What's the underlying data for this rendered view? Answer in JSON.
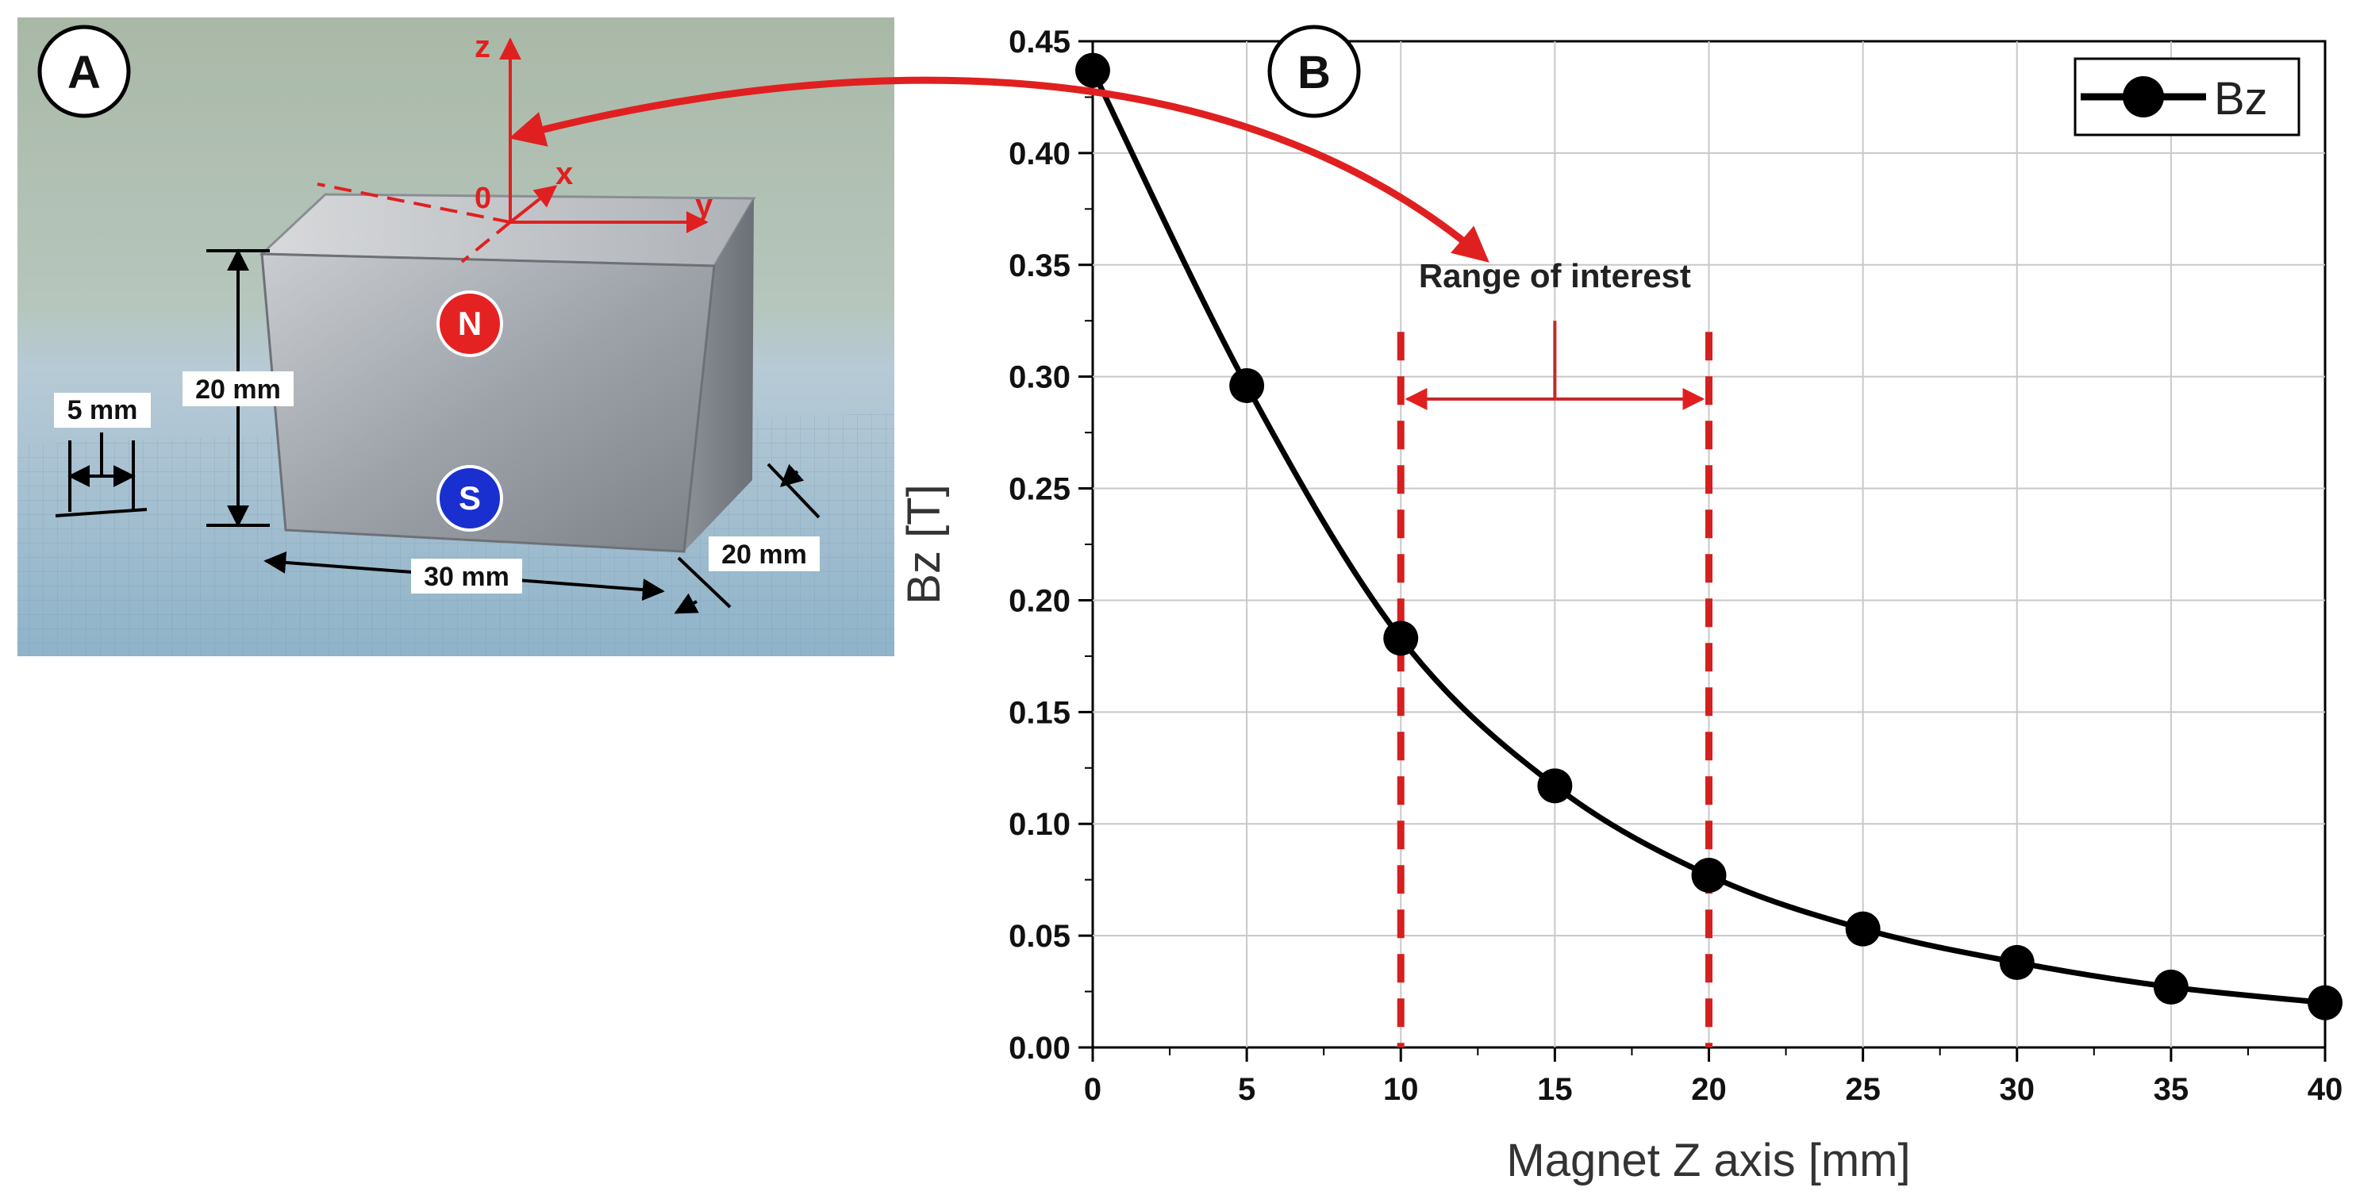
{
  "panels": {
    "a": "A",
    "b": "B"
  },
  "photo": {
    "axis_z": "z",
    "axis_x": "x",
    "axis_y": "y",
    "origin": "0",
    "pole_north": "N",
    "pole_south": "S",
    "dim_height": "20 mm",
    "dim_length": "30 mm",
    "dim_depth": "20 mm",
    "dim_grid": "5 mm"
  },
  "colors": {
    "accent": "#e02020",
    "pole_north": "#e52222",
    "pole_south": "#1a2fd0",
    "curve": "#000000"
  },
  "chart_data": {
    "type": "line",
    "xlabel": "Magnet Z axis [mm]",
    "ylabel": "Bz [T]",
    "xlim": [
      0,
      40
    ],
    "ylim": [
      0,
      0.45
    ],
    "x_ticks": [
      0,
      5,
      10,
      15,
      20,
      25,
      30,
      35,
      40
    ],
    "y_ticks": [
      "0.00",
      "0.05",
      "0.10",
      "0.15",
      "0.20",
      "0.25",
      "0.30",
      "0.35",
      "0.40",
      "0.45"
    ],
    "grid": true,
    "legend_position": "top-right",
    "series": [
      {
        "name": "Bz",
        "x": [
          0,
          5,
          10,
          15,
          20,
          25,
          30,
          35,
          40
        ],
        "y": [
          0.437,
          0.296,
          0.183,
          0.117,
          0.077,
          0.053,
          0.038,
          0.027,
          0.02
        ]
      }
    ],
    "annotation": {
      "text": "Range of interest",
      "x_range": [
        10,
        20
      ]
    }
  }
}
